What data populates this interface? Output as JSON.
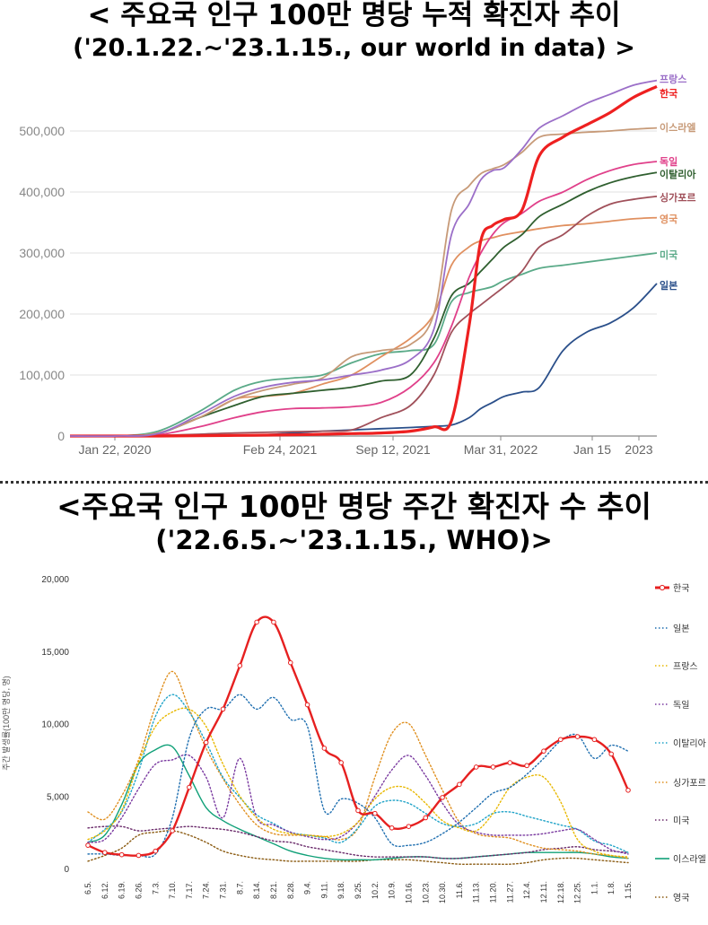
{
  "titles": {
    "chart1_line1": "< 주요국 인구 100만 명당 누적 확진자 추이",
    "chart1_line2": "('20.1.22.~'23.1.15., our world in data) >",
    "chart2_line1": "<주요국 인구 100만 명당 주간 확진자 수 추이",
    "chart2_line2": "('22.6.5.~'23.1.15., WHO)>"
  },
  "chart_data": [
    {
      "type": "line",
      "title": "< 주요국 인구 100만 명당 누적 확진자 추이 ('20.1.22.~'23.1.15., our world in data) >",
      "xlabel": "",
      "ylabel": "",
      "ylim": [
        0,
        600000
      ],
      "yticks": [
        0,
        100000,
        200000,
        300000,
        400000,
        500000
      ],
      "ytick_labels": [
        "0",
        "100,000",
        "200,000",
        "300,000",
        "400,000",
        "500,000"
      ],
      "xtick_labels": [
        "Jan 22, 2020",
        "Feb 24, 2021",
        "Sep 12, 2021",
        "Mar 31, 2022",
        "Jan 15",
        "2023"
      ],
      "grid": true,
      "legend": "right-end labels",
      "x": [
        0,
        0.08,
        0.15,
        0.22,
        0.28,
        0.33,
        0.38,
        0.43,
        0.48,
        0.53,
        0.58,
        0.62,
        0.65,
        0.68,
        0.7,
        0.72,
        0.74,
        0.77,
        0.8,
        0.84,
        0.88,
        0.92,
        0.96,
        1.0
      ],
      "series": [
        {
          "name": "프랑스",
          "color": "#9b6fc8",
          "values": [
            0,
            0,
            4000,
            35000,
            65000,
            80000,
            88000,
            92000,
            100000,
            108000,
            125000,
            175000,
            330000,
            380000,
            420000,
            435000,
            440000,
            470000,
            505000,
            525000,
            545000,
            560000,
            575000,
            583000
          ]
        },
        {
          "name": "한국",
          "color": "#ee2020",
          "values": [
            0,
            0,
            0,
            500,
            1000,
            1500,
            2000,
            3000,
            4000,
            5000,
            8000,
            15000,
            25000,
            180000,
            320000,
            345000,
            355000,
            370000,
            460000,
            490000,
            510000,
            530000,
            555000,
            573000
          ]
        },
        {
          "name": "이스라엘",
          "color": "#c79a78",
          "values": [
            0,
            0,
            5000,
            30000,
            60000,
            75000,
            85000,
            95000,
            130000,
            140000,
            150000,
            200000,
            370000,
            410000,
            430000,
            438000,
            445000,
            465000,
            490000,
            495000,
            498000,
            500000,
            503000,
            505000
          ]
        },
        {
          "name": "독일",
          "color": "#e0408a",
          "values": [
            0,
            0,
            2000,
            15000,
            30000,
            40000,
            45000,
            46000,
            48000,
            55000,
            80000,
            120000,
            180000,
            260000,
            300000,
            330000,
            350000,
            365000,
            385000,
            400000,
            420000,
            435000,
            445000,
            450000
          ]
        },
        {
          "name": "이탈리아",
          "color": "#2f5f2f",
          "values": [
            0,
            0,
            4000,
            30000,
            50000,
            65000,
            70000,
            75000,
            80000,
            90000,
            100000,
            160000,
            230000,
            250000,
            270000,
            290000,
            310000,
            330000,
            360000,
            380000,
            400000,
            415000,
            425000,
            432000
          ]
        },
        {
          "name": "싱가포르",
          "color": "#a0505a",
          "values": [
            0,
            0,
            1000,
            3000,
            5000,
            6000,
            7000,
            8000,
            10000,
            30000,
            50000,
            100000,
            170000,
            200000,
            215000,
            230000,
            245000,
            270000,
            310000,
            330000,
            360000,
            380000,
            388000,
            393000
          ]
        },
        {
          "name": "영국",
          "color": "#e09060",
          "values": [
            0,
            0,
            5000,
            30000,
            60000,
            65000,
            70000,
            85000,
            100000,
            130000,
            160000,
            200000,
            280000,
            310000,
            320000,
            325000,
            330000,
            335000,
            340000,
            345000,
            348000,
            352000,
            356000,
            358000
          ]
        },
        {
          "name": "미국",
          "color": "#5aaa88",
          "values": [
            0,
            0,
            8000,
            40000,
            75000,
            90000,
            95000,
            100000,
            120000,
            135000,
            140000,
            150000,
            220000,
            235000,
            240000,
            245000,
            255000,
            265000,
            275000,
            280000,
            285000,
            290000,
            295000,
            300000
          ]
        },
        {
          "name": "일본",
          "color": "#2a4f8a",
          "values": [
            0,
            0,
            0,
            500,
            1000,
            2000,
            5000,
            8000,
            10000,
            12000,
            14000,
            16000,
            18000,
            30000,
            45000,
            55000,
            65000,
            72000,
            80000,
            140000,
            170000,
            185000,
            210000,
            250000
          ]
        }
      ]
    },
    {
      "type": "line",
      "title": "<주요국 인구 100만 명당 주간 확진자 수 추이 ('22.6.5.~'23.1.15., WHO)>",
      "xlabel": "",
      "ylabel": "주간 발생률(100만 명당, 명)",
      "ylim": [
        0,
        20000
      ],
      "yticks": [
        0,
        5000,
        10000,
        15000,
        20000
      ],
      "ytick_labels": [
        "0",
        "5,000",
        "10,000",
        "15,000",
        "20,000"
      ],
      "categories": [
        "6.5.",
        "6.12.",
        "6.19.",
        "6.26.",
        "7.3.",
        "7.10.",
        "7.17.",
        "7.24.",
        "7.31.",
        "8.7.",
        "8.14.",
        "8.21.",
        "8.28.",
        "9.4.",
        "9.11.",
        "9.18.",
        "9.25.",
        "10.2.",
        "10.9.",
        "10.16.",
        "10.23.",
        "10.30.",
        "11.6.",
        "11.13.",
        "11.20.",
        "11.27.",
        "12.4.",
        "12.11.",
        "12.18.",
        "12.25.",
        "1.1.",
        "1.8.",
        "1.15."
      ],
      "grid": false,
      "legend": "right",
      "series": [
        {
          "name": "한국",
          "color": "#e62020",
          "style": "solid",
          "values": [
            1600,
            1100,
            950,
            900,
            1200,
            2600,
            5600,
            8700,
            11000,
            14000,
            17000,
            17000,
            14200,
            11300,
            8300,
            7300,
            4000,
            3800,
            2800,
            2900,
            3500,
            4900,
            5800,
            7000,
            7000,
            7300,
            7100,
            8100,
            8900,
            9100,
            8900,
            7900,
            5400
          ]
        },
        {
          "name": "일본",
          "color": "#1f6fb0",
          "style": "dotted",
          "values": [
            1000,
            1000,
            900,
            900,
            1000,
            3500,
            9000,
            11000,
            11000,
            12000,
            11000,
            11800,
            10300,
            9800,
            4000,
            4800,
            4500,
            3500,
            1700,
            1600,
            1800,
            2400,
            3200,
            4200,
            5200,
            5600,
            6500,
            7600,
            8800,
            9200,
            7600,
            8500,
            8100
          ]
        },
        {
          "name": "프랑스",
          "color": "#e8b800",
          "style": "dotted",
          "values": [
            2000,
            2600,
            4000,
            7300,
            9800,
            10800,
            11000,
            9800,
            7200,
            5000,
            3500,
            2700,
            2400,
            2300,
            2200,
            2400,
            3200,
            4800,
            5600,
            5500,
            4500,
            3300,
            2800,
            2600,
            3800,
            5600,
            6300,
            6300,
            4600,
            2000,
            1200,
            900,
            800
          ]
        },
        {
          "name": "독일",
          "color": "#7a3aa0",
          "style": "dotted",
          "values": [
            1800,
            2000,
            3500,
            5500,
            7200,
            7500,
            7800,
            6300,
            3500,
            7600,
            3500,
            3000,
            2500,
            2200,
            2000,
            2200,
            3200,
            5000,
            6800,
            7800,
            6400,
            4500,
            3000,
            2500,
            2300,
            2300,
            2300,
            2400,
            2600,
            2700,
            2000,
            1300,
            1000
          ]
        },
        {
          "name": "이탈리아",
          "color": "#1fa3c8",
          "style": "dotted",
          "values": [
            1800,
            2700,
            3900,
            6700,
            10500,
            12000,
            10800,
            8700,
            6300,
            4900,
            3700,
            3100,
            2500,
            2300,
            2100,
            1800,
            2800,
            4300,
            4700,
            4500,
            3800,
            3100,
            2900,
            3100,
            3800,
            3900,
            3600,
            3300,
            3000,
            2700,
            1900,
            1600,
            1100
          ]
        },
        {
          "name": "싱가포르",
          "color": "#e09020",
          "style": "dotted",
          "values": [
            3900,
            3400,
            5000,
            7500,
            11200,
            13600,
            11000,
            8300,
            6200,
            4400,
            3000,
            2400,
            2300,
            2300,
            2200,
            2000,
            2800,
            6300,
            9300,
            10000,
            7800,
            5400,
            3200,
            2400,
            2200,
            2100,
            1700,
            1400,
            1300,
            1200,
            1000,
            900,
            700
          ]
        },
        {
          "name": "미국",
          "color": "#6a2a6a",
          "style": "dotted",
          "values": [
            2800,
            2900,
            2900,
            2600,
            2700,
            2800,
            2900,
            2800,
            2700,
            2500,
            2200,
            1900,
            1800,
            1500,
            1300,
            1100,
            900,
            800,
            800,
            800,
            800,
            700,
            700,
            800,
            900,
            1000,
            1100,
            1300,
            1400,
            1500,
            1300,
            1200,
            1100
          ]
        },
        {
          "name": "이스라엘",
          "color": "#10a078",
          "style": "solid",
          "values": [
            1800,
            2300,
            4400,
            7200,
            8200,
            8400,
            6400,
            4200,
            3300,
            2700,
            2200,
            1700,
            1200,
            900,
            700,
            600,
            600,
            600,
            700,
            800,
            800,
            700,
            700,
            800,
            900,
            1000,
            1100,
            1100,
            1100,
            1100,
            1000,
            800,
            700
          ]
        },
        {
          "name": "영국",
          "color": "#8a5a10",
          "style": "dotted",
          "values": [
            500,
            900,
            1400,
            2300,
            2500,
            2600,
            2300,
            1800,
            1200,
            900,
            700,
            600,
            500,
            500,
            500,
            500,
            500,
            600,
            600,
            600,
            500,
            400,
            300,
            300,
            300,
            300,
            400,
            600,
            700,
            700,
            600,
            500,
            400
          ]
        }
      ]
    }
  ]
}
